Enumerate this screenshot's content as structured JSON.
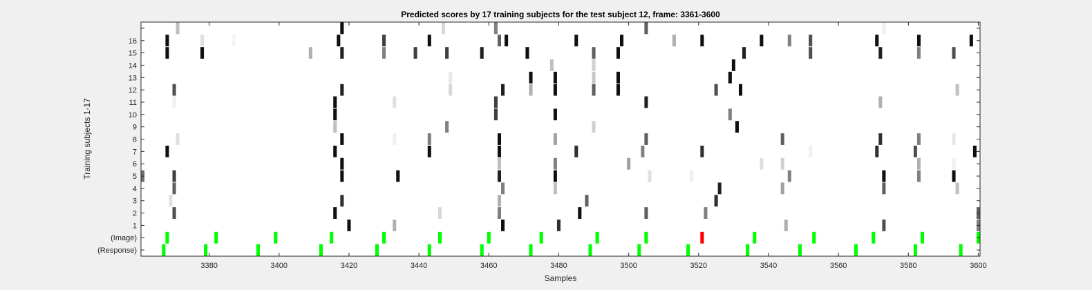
{
  "chart_data": {
    "type": "heatmap",
    "title": "Predicted scores by 17 training subjects for the test subject 12, frame: 3361-3600",
    "xlabel": "Samples",
    "ylabel": "Training subjects 1-17",
    "xlim": [
      3361,
      3600
    ],
    "xticks": [
      3380,
      3400,
      3420,
      3440,
      3460,
      3480,
      3500,
      3520,
      3540,
      3560,
      3580,
      3600
    ],
    "yticklabels": [
      "(Response)",
      "(Image)",
      "1",
      "2",
      "3",
      "4",
      "5",
      "6",
      "7",
      "8",
      "9",
      "10",
      "11",
      "12",
      "13",
      "14",
      "15",
      "16",
      ""
    ],
    "rows": [
      {
        "row": "(Response)",
        "cells": [
          [
            3367,
            "#00ff00"
          ],
          [
            3379,
            "#00ff00"
          ],
          [
            3394,
            "#00ff00"
          ],
          [
            3412,
            "#00ff00"
          ],
          [
            3428,
            "#00ff00"
          ],
          [
            3443,
            "#00ff00"
          ],
          [
            3458,
            "#00ff00"
          ],
          [
            3472,
            "#00ff00"
          ],
          [
            3489,
            "#00ff00"
          ],
          [
            3503,
            "#00ff00"
          ],
          [
            3517,
            "#00ff00"
          ],
          [
            3534,
            "#00ff00"
          ],
          [
            3549,
            "#00ff00"
          ],
          [
            3565,
            "#00ff00"
          ],
          [
            3582,
            "#00ff00"
          ],
          [
            3595,
            "#00ff00"
          ]
        ]
      },
      {
        "row": "(Image)",
        "cells": [
          [
            3368,
            "#00ff00"
          ],
          [
            3382,
            "#00ff00"
          ],
          [
            3399,
            "#00ff00"
          ],
          [
            3415,
            "#00ff00"
          ],
          [
            3430,
            "#00ff00"
          ],
          [
            3446,
            "#00ff00"
          ],
          [
            3460,
            "#00ff00"
          ],
          [
            3475,
            "#00ff00"
          ],
          [
            3491,
            "#00ff00"
          ],
          [
            3505,
            "#00ff00"
          ],
          [
            3521,
            "#ff0000"
          ],
          [
            3536,
            "#00ff00"
          ],
          [
            3553,
            "#00ff00"
          ],
          [
            3570,
            "#00ff00"
          ],
          [
            3584,
            "#00ff00"
          ],
          [
            3600,
            "#00ff00"
          ]
        ]
      },
      {
        "row": "1",
        "cells": [
          [
            3420,
            "#101010"
          ],
          [
            3433,
            "#b0b0b0"
          ],
          [
            3464,
            "#101010"
          ],
          [
            3480,
            "#303030"
          ],
          [
            3545,
            "#b0b0b0"
          ],
          [
            3573,
            "#505050"
          ],
          [
            3600,
            "#808080"
          ]
        ]
      },
      {
        "row": "2",
        "cells": [
          [
            3370,
            "#505050"
          ],
          [
            3416,
            "#101010"
          ],
          [
            3446,
            "#d8d8d8"
          ],
          [
            3463,
            "#808080"
          ],
          [
            3486,
            "#101010"
          ],
          [
            3505,
            "#606060"
          ],
          [
            3522,
            "#808080"
          ],
          [
            3600,
            "#606060"
          ]
        ]
      },
      {
        "row": "3",
        "cells": [
          [
            3369,
            "#e0e0e0"
          ],
          [
            3418,
            "#303030"
          ],
          [
            3463,
            "#b0b0b0"
          ],
          [
            3488,
            "#606060"
          ],
          [
            3525,
            "#303030"
          ]
        ]
      },
      {
        "row": "4",
        "cells": [
          [
            3370,
            "#606060"
          ],
          [
            3464,
            "#808080"
          ],
          [
            3479,
            "#c0c0c0"
          ],
          [
            3526,
            "#202020"
          ],
          [
            3544,
            "#a0a0a0"
          ],
          [
            3573,
            "#606060"
          ],
          [
            3594,
            "#c0c0c0"
          ]
        ]
      },
      {
        "row": "5",
        "cells": [
          [
            3361,
            "#707070"
          ],
          [
            3370,
            "#404040"
          ],
          [
            3418,
            "#101010"
          ],
          [
            3434,
            "#101010"
          ],
          [
            3463,
            "#202020"
          ],
          [
            3479,
            "#101010"
          ],
          [
            3506,
            "#e0e0e0"
          ],
          [
            3518,
            "#f0f0f0"
          ],
          [
            3546,
            "#808080"
          ],
          [
            3573,
            "#101010"
          ],
          [
            3583,
            "#808080"
          ],
          [
            3593,
            "#101010"
          ]
        ]
      },
      {
        "row": "6",
        "cells": [
          [
            3418,
            "#101010"
          ],
          [
            3463,
            "#c0c0c0"
          ],
          [
            3479,
            "#808080"
          ],
          [
            3500,
            "#a0a0a0"
          ],
          [
            3538,
            "#e0e0e0"
          ],
          [
            3544,
            "#d0d0d0"
          ],
          [
            3583,
            "#b0b0b0"
          ],
          [
            3593,
            "#f0f0f0"
          ]
        ]
      },
      {
        "row": "7",
        "cells": [
          [
            3368,
            "#101010"
          ],
          [
            3416,
            "#101010"
          ],
          [
            3443,
            "#101010"
          ],
          [
            3463,
            "#101010"
          ],
          [
            3485,
            "#303030"
          ],
          [
            3504,
            "#808080"
          ],
          [
            3521,
            "#303030"
          ],
          [
            3552,
            "#f0f0f0"
          ],
          [
            3571,
            "#303030"
          ],
          [
            3582,
            "#505050"
          ],
          [
            3599,
            "#101010"
          ]
        ]
      },
      {
        "row": "8",
        "cells": [
          [
            3371,
            "#e0e0e0"
          ],
          [
            3418,
            "#101010"
          ],
          [
            3433,
            "#f0f0f0"
          ],
          [
            3443,
            "#808080"
          ],
          [
            3463,
            "#101010"
          ],
          [
            3479,
            "#a0a0a0"
          ],
          [
            3505,
            "#606060"
          ],
          [
            3544,
            "#606060"
          ],
          [
            3572,
            "#303030"
          ],
          [
            3583,
            "#808080"
          ],
          [
            3593,
            "#e8e8e8"
          ]
        ]
      },
      {
        "row": "9",
        "cells": [
          [
            3416,
            "#c0c0c0"
          ],
          [
            3448,
            "#808080"
          ],
          [
            3490,
            "#d0d0d0"
          ],
          [
            3531,
            "#101010"
          ]
        ]
      },
      {
        "row": "10",
        "cells": [
          [
            3416,
            "#101010"
          ],
          [
            3462,
            "#404040"
          ],
          [
            3479,
            "#101010"
          ],
          [
            3529,
            "#808080"
          ]
        ]
      },
      {
        "row": "11",
        "cells": [
          [
            3370,
            "#f0f0f0"
          ],
          [
            3416,
            "#101010"
          ],
          [
            3433,
            "#e0e0e0"
          ],
          [
            3462,
            "#404040"
          ],
          [
            3505,
            "#202020"
          ],
          [
            3572,
            "#b0b0b0"
          ]
        ]
      },
      {
        "row": "12",
        "cells": [
          [
            3370,
            "#505050"
          ],
          [
            3418,
            "#202020"
          ],
          [
            3449,
            "#d8d8d8"
          ],
          [
            3464,
            "#202020"
          ],
          [
            3472,
            "#b0b0b0"
          ],
          [
            3479,
            "#101010"
          ],
          [
            3490,
            "#606060"
          ],
          [
            3497,
            "#101010"
          ],
          [
            3525,
            "#505050"
          ],
          [
            3532,
            "#101010"
          ],
          [
            3594,
            "#c0c0c0"
          ]
        ]
      },
      {
        "row": "13",
        "cells": [
          [
            3449,
            "#e8e8e8"
          ],
          [
            3472,
            "#101010"
          ],
          [
            3479,
            "#101010"
          ],
          [
            3490,
            "#c8c8c8"
          ],
          [
            3497,
            "#101010"
          ],
          [
            3529,
            "#101010"
          ]
        ]
      },
      {
        "row": "14",
        "cells": [
          [
            3478,
            "#c0c0c0"
          ],
          [
            3490,
            "#d0d0d0"
          ],
          [
            3530,
            "#101010"
          ]
        ]
      },
      {
        "row": "15",
        "cells": [
          [
            3368,
            "#101010"
          ],
          [
            3378,
            "#101010"
          ],
          [
            3409,
            "#b0b0b0"
          ],
          [
            3418,
            "#202020"
          ],
          [
            3430,
            "#808080"
          ],
          [
            3439,
            "#404040"
          ],
          [
            3448,
            "#404040"
          ],
          [
            3458,
            "#202020"
          ],
          [
            3471,
            "#101010"
          ],
          [
            3490,
            "#606060"
          ],
          [
            3497,
            "#101010"
          ],
          [
            3533,
            "#202020"
          ],
          [
            3552,
            "#505050"
          ],
          [
            3572,
            "#202020"
          ],
          [
            3583,
            "#808080"
          ],
          [
            3593,
            "#505050"
          ]
        ]
      },
      {
        "row": "16",
        "cells": [
          [
            3368,
            "#101010"
          ],
          [
            3378,
            "#e0e0e0"
          ],
          [
            3387,
            "#f4f4f4"
          ],
          [
            3417,
            "#101010"
          ],
          [
            3430,
            "#404040"
          ],
          [
            3443,
            "#101010"
          ],
          [
            3463,
            "#606060"
          ],
          [
            3465,
            "#101010"
          ],
          [
            3485,
            "#101010"
          ],
          [
            3498,
            "#101010"
          ],
          [
            3513,
            "#b0b0b0"
          ],
          [
            3521,
            "#101010"
          ],
          [
            3538,
            "#101010"
          ],
          [
            3546,
            "#808080"
          ],
          [
            3552,
            "#505050"
          ],
          [
            3571,
            "#101010"
          ],
          [
            3583,
            "#101010"
          ],
          [
            3598,
            "#101010"
          ]
        ]
      },
      {
        "row": "",
        "cells": [
          [
            3371,
            "#c0c0c0"
          ],
          [
            3418,
            "#101010"
          ],
          [
            3447,
            "#d8d8d8"
          ],
          [
            3462,
            "#808080"
          ],
          [
            3505,
            "#606060"
          ],
          [
            3573,
            "#f0f0f0"
          ]
        ]
      }
    ]
  }
}
